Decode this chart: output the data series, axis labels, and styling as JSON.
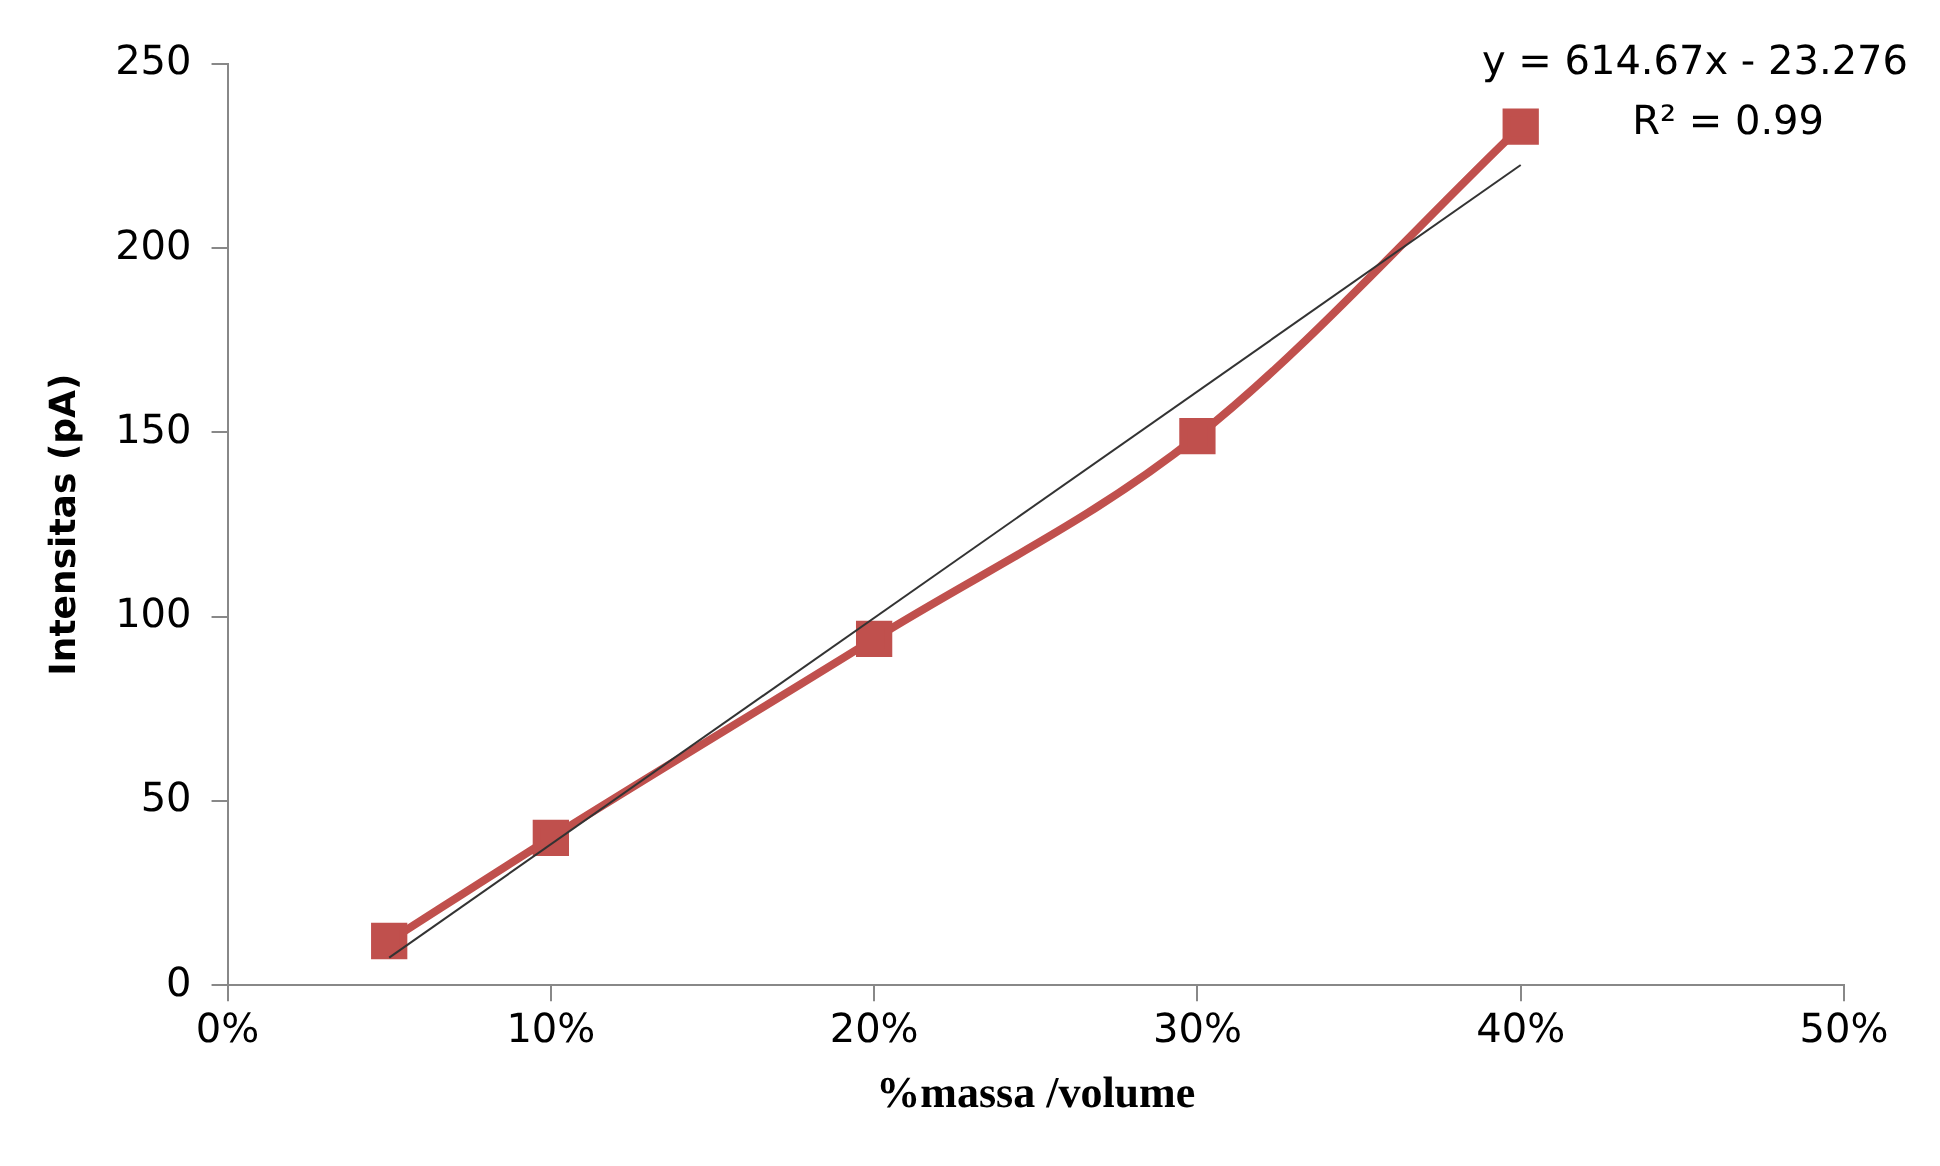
{
  "chart_data": {
    "type": "line",
    "xlabel": "%massa /volume",
    "ylabel": "Intensitas (pA)",
    "annotations": [
      "y = 614.67x - 23.276",
      "R² = 0.99"
    ],
    "x": [
      0.05,
      0.1,
      0.2,
      0.3,
      0.4
    ],
    "series": [
      {
        "color": "#c0504d",
        "values": [
          12,
          40,
          94,
          149,
          233
        ],
        "marker": "square"
      },
      {
        "type": "line",
        "color": "#333333",
        "x": [
          0.05,
          0.4
        ],
        "values": [
          7.5,
          222.6
        ],
        "marker": "none"
      }
    ],
    "xlim": [
      0,
      0.5
    ],
    "xticks": [
      {
        "value": 0,
        "label": "0%"
      },
      {
        "value": 0.1,
        "label": "10%"
      },
      {
        "value": 0.2,
        "label": "20%"
      },
      {
        "value": 0.3,
        "label": "30%"
      },
      {
        "value": 0.4,
        "label": "40%"
      },
      {
        "value": 0.5,
        "label": "50%"
      }
    ],
    "ylim": [
      0,
      250
    ],
    "yticks": [
      0,
      50,
      100,
      150,
      200,
      250
    ],
    "grid": false,
    "legend": false
  }
}
